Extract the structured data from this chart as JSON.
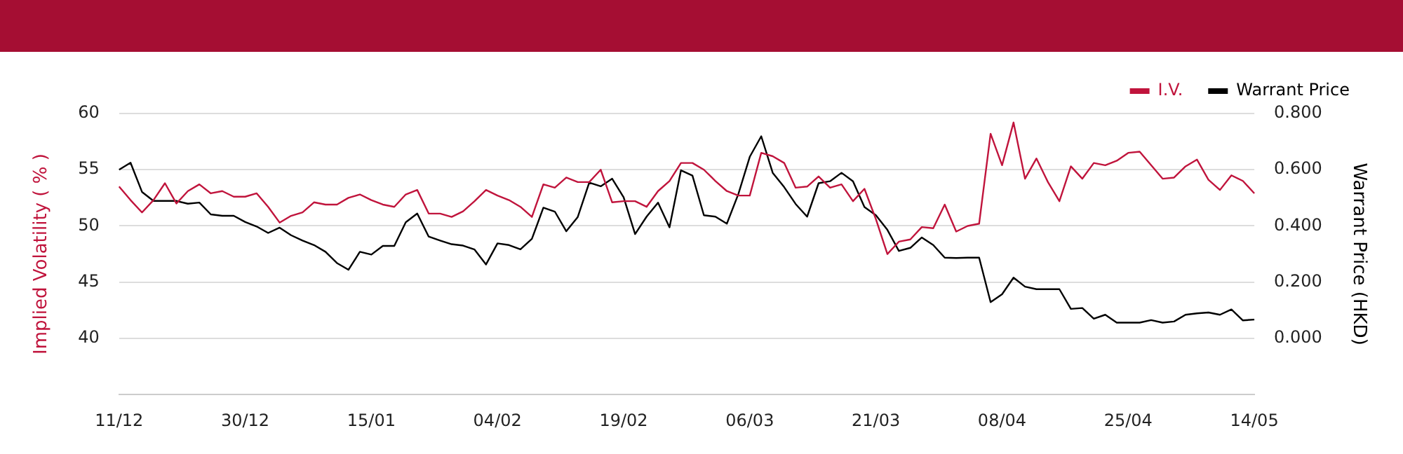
{
  "chart_data": {
    "type": "line",
    "categories": [
      "11/12",
      null,
      null,
      null,
      null,
      null,
      null,
      null,
      null,
      null,
      null,
      "30/12",
      null,
      null,
      null,
      null,
      null,
      null,
      null,
      null,
      null,
      null,
      "15/01",
      null,
      null,
      null,
      null,
      null,
      null,
      null,
      null,
      null,
      null,
      "04/02",
      null,
      null,
      null,
      null,
      null,
      null,
      null,
      null,
      null,
      null,
      "19/02",
      null,
      null,
      null,
      null,
      null,
      null,
      null,
      null,
      null,
      null,
      "06/03",
      null,
      null,
      null,
      null,
      null,
      null,
      null,
      null,
      null,
      null,
      "21/03",
      null,
      null,
      null,
      null,
      null,
      null,
      null,
      null,
      null,
      null,
      "08/04",
      null,
      null,
      null,
      null,
      null,
      null,
      null,
      null,
      null,
      null,
      "25/04",
      null,
      null,
      null,
      null,
      null,
      null,
      null,
      null,
      null,
      null,
      "14/05"
    ],
    "series": [
      {
        "name": "I.V.",
        "color": "#c0143c",
        "values": [
          53.5,
          52.3,
          51.2,
          52.3,
          53.8,
          52.0,
          53.1,
          53.7,
          52.9,
          53.1,
          52.6,
          52.6,
          52.9,
          51.7,
          50.3,
          50.9,
          51.2,
          52.1,
          51.9,
          51.9,
          52.5,
          52.8,
          52.3,
          51.9,
          51.7,
          52.8,
          53.2,
          51.1,
          51.1,
          50.8,
          51.3,
          52.2,
          53.2,
          52.7,
          52.3,
          51.7,
          50.8,
          53.7,
          53.4,
          54.3,
          53.9,
          53.9,
          55.0,
          52.1,
          52.2,
          52.2,
          51.7,
          53.1,
          54.0,
          55.6,
          55.6,
          55.0,
          54.0,
          53.1,
          52.7,
          52.7,
          56.5,
          56.2,
          55.6,
          53.4,
          53.5,
          54.4,
          53.4,
          53.7,
          52.2,
          53.3,
          50.6,
          47.5,
          48.6,
          48.8,
          49.9,
          49.8,
          51.9,
          49.5,
          50.0,
          50.2,
          58.2,
          55.4,
          59.2,
          54.2,
          56.0,
          53.9,
          52.2,
          55.3,
          54.2,
          55.6,
          55.4,
          55.8,
          56.5,
          56.6,
          55.4,
          54.2,
          54.3,
          55.3,
          55.9,
          54.1,
          53.2,
          54.5,
          54.0,
          52.9
        ]
      },
      {
        "name": "Warrant Price",
        "color": "#000000",
        "axis": "y2",
        "values": [
          0.6,
          0.625,
          0.521,
          0.489,
          0.489,
          0.489,
          0.479,
          0.483,
          0.441,
          0.436,
          0.436,
          0.414,
          0.398,
          0.375,
          0.394,
          0.367,
          0.348,
          0.332,
          0.308,
          0.268,
          0.244,
          0.308,
          0.298,
          0.329,
          0.329,
          0.413,
          0.444,
          0.362,
          0.348,
          0.335,
          0.33,
          0.316,
          0.263,
          0.338,
          0.332,
          0.317,
          0.354,
          0.465,
          0.451,
          0.381,
          0.432,
          0.554,
          0.541,
          0.568,
          0.502,
          0.371,
          0.433,
          0.483,
          0.395,
          0.598,
          0.579,
          0.438,
          0.433,
          0.408,
          0.513,
          0.646,
          0.719,
          0.589,
          0.538,
          0.478,
          0.433,
          0.552,
          0.559,
          0.589,
          0.559,
          0.467,
          0.438,
          0.386,
          0.311,
          0.322,
          0.359,
          0.332,
          0.287,
          0.286,
          0.287,
          0.287,
          0.129,
          0.157,
          0.216,
          0.184,
          0.175,
          0.175,
          0.175,
          0.105,
          0.108,
          0.07,
          0.084,
          0.056,
          0.056,
          0.056,
          0.065,
          0.056,
          0.06,
          0.084,
          0.089,
          0.092,
          0.084,
          0.103,
          0.064,
          0.067
        ]
      }
    ],
    "ylabel": "Implied Volatility ( % )",
    "y2label": "Warrant Price (HKD)",
    "ylim": [
      35,
      60
    ],
    "yticks": [
      40,
      45,
      50,
      55,
      60
    ],
    "y2lim": [
      -0.2,
      0.8
    ],
    "y2ticks": [
      {
        "value": 0,
        "label": "0.000"
      },
      {
        "value": 0.2,
        "label": "0.200"
      },
      {
        "value": 0.4,
        "label": "0.400"
      },
      {
        "value": 0.6,
        "label": "0.600"
      },
      {
        "value": 0.8,
        "label": "0.800"
      }
    ],
    "grid": "y",
    "legend": "top right",
    "marker": "none",
    "line_style": "solid"
  }
}
